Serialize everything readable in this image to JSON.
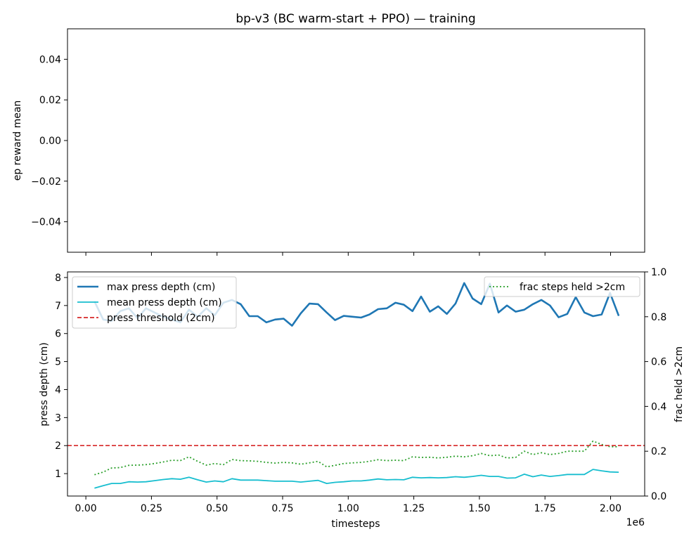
{
  "chart_data": [
    {
      "type": "line",
      "title": "bp-v3 (BC warm-start + PPO) — training",
      "xlabel": "",
      "ylabel": "ep reward mean",
      "xlim": [
        -0.07,
        2.13
      ],
      "ylim": [
        -0.055,
        0.055
      ],
      "y_ticks": [
        -0.04,
        -0.02,
        0.0,
        0.02,
        0.04
      ],
      "y_tick_labels": [
        "−0.04",
        "−0.02",
        "0.00",
        "0.02",
        "0.04"
      ],
      "series": []
    },
    {
      "type": "line",
      "xlabel": "timesteps",
      "x_offset_label": "1e6",
      "ylabel": "press depth (cm)",
      "y2label": "frac held >2cm",
      "xlim": [
        -0.07,
        2.13
      ],
      "ylim": [
        0.2,
        8.2
      ],
      "y2lim": [
        0.0,
        1.0
      ],
      "x_ticks": [
        0.0,
        0.25,
        0.5,
        0.75,
        1.0,
        1.25,
        1.5,
        1.75,
        2.0
      ],
      "x_tick_labels": [
        "0.00",
        "0.25",
        "0.50",
        "0.75",
        "1.00",
        "1.25",
        "1.50",
        "1.75",
        "2.00"
      ],
      "y_ticks": [
        1,
        2,
        3,
        4,
        5,
        6,
        7,
        8
      ],
      "y_tick_labels": [
        "1",
        "2",
        "3",
        "4",
        "5",
        "6",
        "7",
        "8"
      ],
      "y2_ticks": [
        0.0,
        0.2,
        0.4,
        0.6,
        0.8,
        1.0
      ],
      "y2_tick_labels": [
        "0.0",
        "0.2",
        "0.4",
        "0.6",
        "0.8",
        "1.0"
      ],
      "grid": false,
      "legend_left": {
        "placement": "upper-left",
        "entries": [
          "max press depth (cm)",
          "mean press depth (cm)",
          "press threshold (2cm)"
        ]
      },
      "legend_right": {
        "placement": "upper-right",
        "entries": [
          "frac steps held >2cm"
        ]
      },
      "x": [
        0.033,
        0.066,
        0.098,
        0.131,
        0.164,
        0.197,
        0.229,
        0.262,
        0.295,
        0.328,
        0.36,
        0.393,
        0.426,
        0.459,
        0.491,
        0.524,
        0.557,
        0.59,
        0.623,
        0.655,
        0.688,
        0.721,
        0.754,
        0.786,
        0.819,
        0.852,
        0.885,
        0.918,
        0.95,
        0.983,
        1.016,
        1.049,
        1.081,
        1.114,
        1.147,
        1.18,
        1.212,
        1.245,
        1.278,
        1.311,
        1.343,
        1.376,
        1.409,
        1.442,
        1.474,
        1.507,
        1.54,
        1.573,
        1.605,
        1.638,
        1.671,
        1.704,
        1.736,
        1.769,
        1.802,
        1.835,
        1.867,
        1.9,
        1.933,
        1.966,
        1.998,
        2.031
      ],
      "series": [
        {
          "name": "max press depth (cm)",
          "axis": "left",
          "color": "#1f77b4",
          "style": "solid",
          "values": [
            7.15,
            6.5,
            6.45,
            6.8,
            6.9,
            6.55,
            6.9,
            6.75,
            6.6,
            6.5,
            6.4,
            6.85,
            6.6,
            6.9,
            6.65,
            7.1,
            7.2,
            7.05,
            6.62,
            6.62,
            6.4,
            6.5,
            6.53,
            6.28,
            6.72,
            7.07,
            7.05,
            6.75,
            6.48,
            6.63,
            6.6,
            6.57,
            6.68,
            6.87,
            6.9,
            7.1,
            7.03,
            6.8,
            7.32,
            6.78,
            6.97,
            6.7,
            7.07,
            7.8,
            7.25,
            7.05,
            7.78,
            6.75,
            7.0,
            6.78,
            6.85,
            7.05,
            7.2,
            7.0,
            6.58,
            6.7,
            7.3,
            6.75,
            6.62,
            6.68,
            7.45,
            6.63
          ]
        },
        {
          "name": "mean press depth (cm)",
          "axis": "left",
          "color": "#17becf",
          "style": "solid",
          "values": [
            0.48,
            0.57,
            0.65,
            0.65,
            0.71,
            0.7,
            0.71,
            0.75,
            0.79,
            0.82,
            0.8,
            0.87,
            0.78,
            0.7,
            0.74,
            0.71,
            0.82,
            0.77,
            0.77,
            0.77,
            0.75,
            0.73,
            0.73,
            0.73,
            0.7,
            0.73,
            0.76,
            0.65,
            0.69,
            0.71,
            0.74,
            0.74,
            0.77,
            0.81,
            0.78,
            0.79,
            0.78,
            0.87,
            0.85,
            0.86,
            0.85,
            0.86,
            0.89,
            0.87,
            0.9,
            0.94,
            0.9,
            0.9,
            0.84,
            0.85,
            0.98,
            0.89,
            0.95,
            0.9,
            0.93,
            0.97,
            0.97,
            0.97,
            1.15,
            1.1,
            1.06,
            1.05
          ]
        },
        {
          "name": "press threshold (2cm)",
          "axis": "left",
          "color": "#d62728",
          "style": "dashed",
          "constant": 2.0
        },
        {
          "name": "frac steps held >2cm",
          "axis": "right",
          "color": "#2ca02c",
          "style": "dotted",
          "values": [
            0.095,
            0.107,
            0.125,
            0.127,
            0.137,
            0.138,
            0.14,
            0.145,
            0.152,
            0.16,
            0.158,
            0.175,
            0.155,
            0.138,
            0.145,
            0.14,
            0.163,
            0.158,
            0.157,
            0.155,
            0.15,
            0.147,
            0.15,
            0.148,
            0.142,
            0.148,
            0.155,
            0.13,
            0.137,
            0.145,
            0.148,
            0.15,
            0.155,
            0.162,
            0.158,
            0.16,
            0.158,
            0.175,
            0.172,
            0.173,
            0.17,
            0.173,
            0.178,
            0.175,
            0.18,
            0.19,
            0.18,
            0.183,
            0.17,
            0.172,
            0.2,
            0.185,
            0.193,
            0.185,
            0.19,
            0.2,
            0.2,
            0.2,
            0.245,
            0.23,
            0.22,
            0.22
          ]
        }
      ]
    }
  ]
}
